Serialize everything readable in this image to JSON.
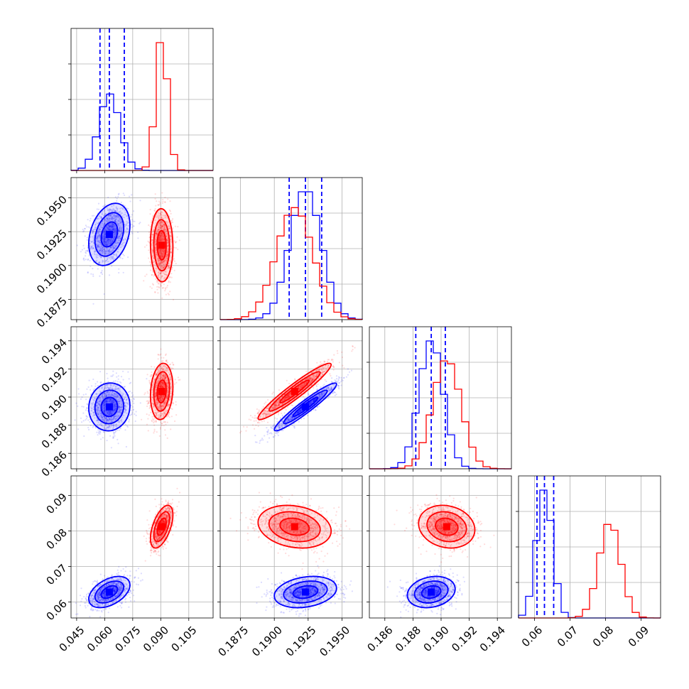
{
  "chart_data": {
    "type": "corner",
    "title": "",
    "colors": {
      "a": "#0000ff",
      "b": "#ff0000"
    },
    "grid": true,
    "params": [
      {
        "range": [
          0.042,
          0.118
        ],
        "ticks": [
          0.045,
          0.06,
          0.075,
          0.09,
          0.105
        ],
        "labels": [
          "0.045",
          "0.060",
          "0.075",
          "0.090",
          "0.105"
        ]
      },
      {
        "range": [
          0.186,
          0.1965
        ],
        "ticks": [
          0.1875,
          0.19,
          0.1925,
          0.195
        ],
        "labels": [
          "0.1875",
          "0.1900",
          "0.1925",
          "0.1950"
        ]
      },
      {
        "range": [
          0.1849,
          0.195
        ],
        "ticks": [
          0.186,
          0.188,
          0.19,
          0.192,
          0.194
        ],
        "labels": [
          "0.186",
          "0.188",
          "0.190",
          "0.192",
          "0.194"
        ]
      },
      {
        "range": [
          0.0555,
          0.0955
        ],
        "ticks": [
          0.06,
          0.07,
          0.08,
          0.09
        ],
        "labels": [
          "0.06",
          "0.07",
          "0.08",
          "0.09"
        ]
      }
    ],
    "series": [
      {
        "color": "#0000ff",
        "mean": [
          0.0625,
          0.1923,
          0.1893,
          0.0628
        ],
        "std": [
          0.0055,
          0.00115,
          0.00085,
          0.0022
        ],
        "quantiles": [
          [
            0.0575,
            0.0625,
            0.0705
          ],
          [
            0.1911,
            0.1923,
            0.1935
          ],
          [
            0.1882,
            0.1893,
            0.1903
          ],
          [
            0.0607,
            0.0628,
            0.0654
          ]
        ],
        "corr": [
          [
            1,
            0.3,
            0.05,
            0.45
          ],
          [
            0.3,
            1,
            0.95,
            0.25
          ],
          [
            0.05,
            0.95,
            1,
            0.2
          ],
          [
            0.45,
            0.25,
            0.2,
            1
          ]
        ]
      },
      {
        "color": "#ff0000",
        "mean": [
          0.0905,
          0.1915,
          0.1904,
          0.0812
        ],
        "std": [
          0.003,
          0.00135,
          0.001,
          0.003
        ],
        "quantiles": [],
        "corr": [
          [
            1,
            -0.05,
            0.15,
            0.55
          ],
          [
            -0.05,
            1,
            0.95,
            -0.2
          ],
          [
            0.15,
            0.95,
            1,
            -0.15
          ],
          [
            0.55,
            -0.2,
            -0.15,
            1
          ]
        ]
      }
    ]
  }
}
